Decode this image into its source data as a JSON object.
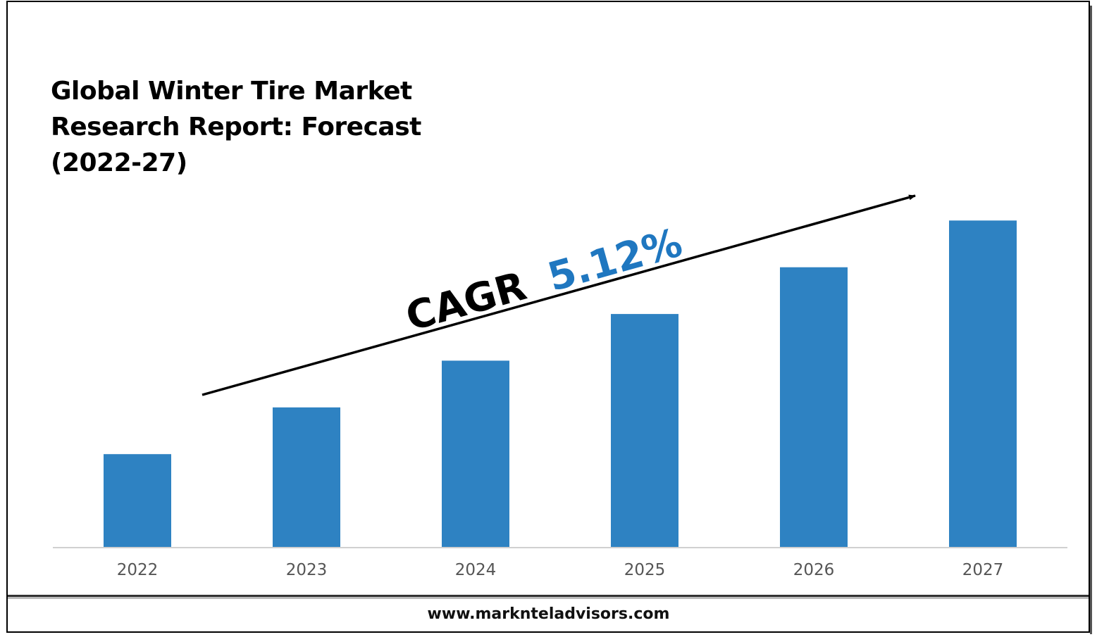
{
  "chart_data": {
    "type": "bar",
    "title": "Global Winter Tire Market Research Report: Forecast (2022-27)",
    "categories": [
      "2022",
      "2023",
      "2024",
      "2025",
      "2026",
      "2027"
    ],
    "values": [
      2.0,
      3.0,
      4.0,
      5.0,
      6.0,
      7.0
    ],
    "ylim": [
      0,
      7.2
    ],
    "xlabel": "",
    "ylabel": "",
    "grid": false,
    "bar_color": "#2E82C2",
    "annotation": {
      "prefix": "CAGR",
      "value": "5.12%",
      "value_color": "#1F77C0"
    }
  },
  "footer": {
    "website": "www.marknteladvisors.com"
  }
}
